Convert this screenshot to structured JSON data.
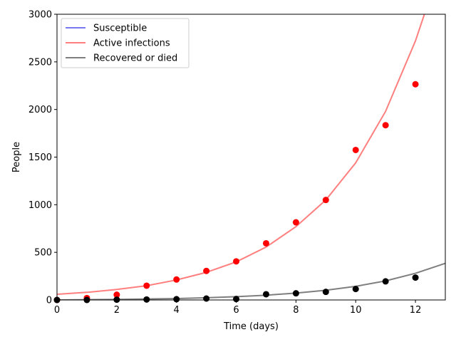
{
  "chart_data": {
    "type": "line",
    "xlabel": "Time (days)",
    "ylabel": "People",
    "xlim": [
      0,
      13
    ],
    "ylim": [
      0,
      3000
    ],
    "xticks": [
      0,
      2,
      4,
      6,
      8,
      10,
      12
    ],
    "yticks": [
      0,
      500,
      1000,
      1500,
      2000,
      2500,
      3000
    ],
    "grid": false,
    "legend_position": "top-left",
    "series": [
      {
        "name": "Susceptible",
        "color": "#7777ee",
        "x": [],
        "y": []
      },
      {
        "name": "Active infections",
        "color": "#ff7f7f",
        "x": [
          0,
          1,
          2,
          3,
          4,
          5,
          6,
          7,
          8,
          9,
          10,
          11,
          12,
          12.3
        ],
        "y": [
          60,
          80,
          110,
          150,
          210,
          290,
          400,
          555,
          770,
          1050,
          1440,
          1980,
          2720,
          3000
        ]
      },
      {
        "name": "Recovered or died",
        "color": "#7f7f7f",
        "x": [
          0,
          1,
          2,
          3,
          4,
          5,
          6,
          7,
          8,
          9,
          10,
          11,
          12,
          13
        ],
        "y": [
          0,
          3,
          6,
          10,
          15,
          23,
          35,
          50,
          72,
          102,
          143,
          200,
          280,
          385
        ]
      }
    ],
    "observations": [
      {
        "color": "#ff0000",
        "x": [
          0,
          1,
          2,
          3,
          4,
          5,
          6,
          7,
          8,
          9,
          10,
          11,
          12
        ],
        "y": [
          0,
          20,
          55,
          150,
          215,
          305,
          405,
          595,
          815,
          1050,
          1575,
          1835,
          2265
        ]
      },
      {
        "color": "#000000",
        "x": [
          0,
          1,
          2,
          3,
          4,
          5,
          6,
          7,
          8,
          9,
          10,
          11,
          12
        ],
        "y": [
          0,
          0,
          3,
          5,
          8,
          15,
          10,
          60,
          70,
          85,
          115,
          195,
          235
        ]
      }
    ]
  }
}
